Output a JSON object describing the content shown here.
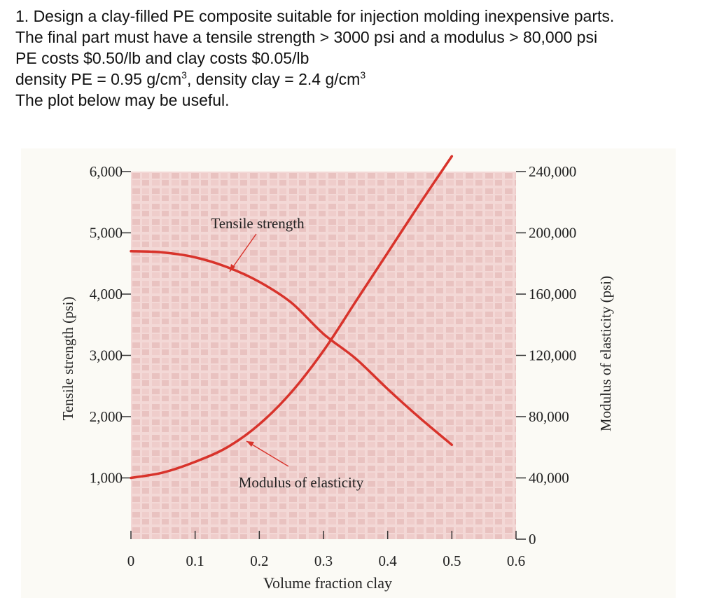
{
  "problem": {
    "line1": "1. Design a clay-filled PE composite suitable for injection molding inexpensive parts.",
    "line2": "The final part must have a tensile strength > 3000 psi and a modulus > 80,000 psi",
    "line3": "PE costs $0.50/lb and clay costs $0.05/lb",
    "line4_a": "density PE = 0.95 g/cm",
    "line4_sup1": "3",
    "line4_b": ", density clay = 2.4 g/cm",
    "line4_sup2": "3",
    "line5": "The plot below may be useful."
  },
  "chart_data": {
    "type": "line",
    "xlabel": "Volume fraction clay",
    "ylabel_left": "Tensile strength (psi)",
    "ylabel_right": "Modulus of elasticity (psi)",
    "xlim": [
      0,
      0.6
    ],
    "ylim_left": [
      0,
      6000
    ],
    "ylim_right": [
      0,
      240000
    ],
    "x_ticks": [
      "0",
      "0.1",
      "0.2",
      "0.3",
      "0.4",
      "0.5",
      "0.6"
    ],
    "y_left_ticks": [
      "1,000",
      "2,000",
      "3,000",
      "4,000",
      "5,000",
      "6,000"
    ],
    "y_right_ticks": [
      "0",
      "40,000",
      "80,000",
      "120,000",
      "160,000",
      "200,000",
      "240,000"
    ],
    "series": [
      {
        "name": "Tensile strength",
        "axis": "left",
        "x": [
          0.0,
          0.05,
          0.1,
          0.15,
          0.2,
          0.25,
          0.3,
          0.35,
          0.4,
          0.45,
          0.5
        ],
        "y": [
          4700,
          4680,
          4600,
          4440,
          4200,
          3860,
          3350,
          2950,
          2450,
          1980,
          1540
        ]
      },
      {
        "name": "Modulus of elasticity",
        "axis": "right",
        "x": [
          0.0,
          0.05,
          0.1,
          0.15,
          0.2,
          0.25,
          0.3,
          0.35,
          0.4,
          0.45,
          0.5
        ],
        "y": [
          40000,
          43500,
          50500,
          60000,
          75000,
          96000,
          123000,
          155000,
          187000,
          219000,
          250000
        ]
      }
    ],
    "annotations": [
      {
        "text": "Tensile strength",
        "points_to_series": "Tensile strength"
      },
      {
        "text": "Modulus of elasticity",
        "points_to_series": "Modulus of elasticity"
      }
    ],
    "colors": {
      "curve": "#d8332b",
      "background": "#f1d3d1",
      "grid_block": "#eac1bf",
      "axis": "#333333"
    }
  }
}
